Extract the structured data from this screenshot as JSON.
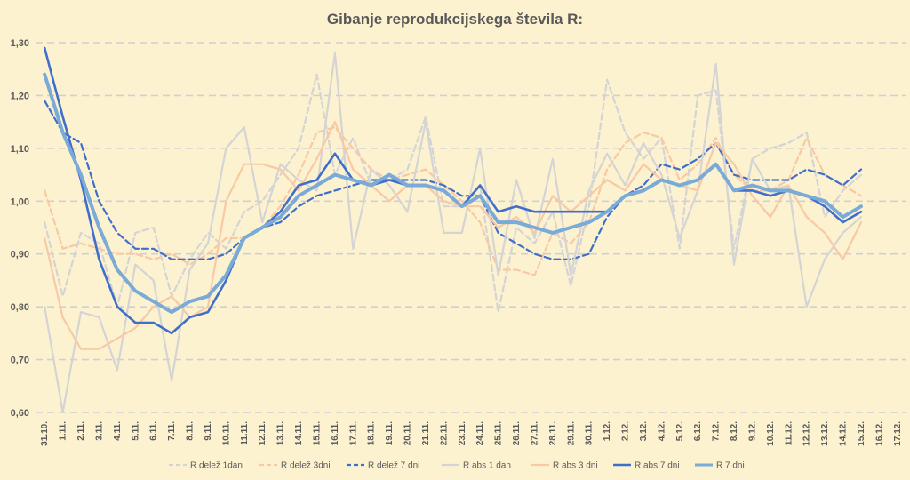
{
  "chart_data": {
    "type": "line",
    "title": "Gibanje reprodukcijskega števila R:",
    "xlabel": "",
    "ylabel": "",
    "ylim": [
      0.6,
      1.3
    ],
    "yticks": [
      "0,60",
      "0,70",
      "0,80",
      "0,90",
      "1,00",
      "1,10",
      "1,20",
      "1,30"
    ],
    "grid": true,
    "legend_position": "bottom",
    "categories": [
      "31.10.",
      "1.11.",
      "2.11.",
      "3.11.",
      "4.11.",
      "5.11.",
      "6.11.",
      "7.11.",
      "8.11.",
      "9.11.",
      "10.11.",
      "11.11.",
      "12.11.",
      "13.11.",
      "14.11.",
      "15.11.",
      "16.11.",
      "17.11.",
      "18.11.",
      "19.11.",
      "20.11.",
      "21.11.",
      "22.11.",
      "23.11.",
      "24.11.",
      "25.11.",
      "26.11.",
      "27.11.",
      "28.11.",
      "29.11.",
      "30.11.",
      "1.12.",
      "2.12.",
      "3.12.",
      "4.12.",
      "5.12.",
      "6.12.",
      "7.12.",
      "8.12.",
      "9.12.",
      "10.12.",
      "11.12.",
      "12.12.",
      "13.12.",
      "14.12.",
      "15.12.",
      "16.12.",
      "17.12."
    ],
    "series": [
      {
        "name": "R delež 1dan",
        "color": "#d4d4d4",
        "style": "dashed",
        "width": 2.2,
        "values": [
          0.96,
          0.82,
          0.94,
          0.92,
          0.8,
          0.94,
          0.95,
          0.82,
          0.89,
          0.94,
          0.91,
          0.98,
          1.0,
          1.05,
          1.1,
          1.24,
          1.05,
          1.12,
          1.03,
          1.04,
          1.06,
          1.16,
          0.99,
          0.99,
          1.03,
          0.79,
          0.95,
          0.92,
          0.98,
          0.84,
          0.99,
          1.23,
          1.13,
          1.08,
          1.12,
          0.91,
          1.2,
          1.21,
          0.91,
          1.08,
          1.1,
          1.11,
          1.13,
          0.97,
          1.02,
          1.05,
          null,
          null
        ]
      },
      {
        "name": "R delež 3dni",
        "color": "#f7c9a4",
        "style": "dashed",
        "width": 2.2,
        "values": [
          1.02,
          0.91,
          0.92,
          0.91,
          0.9,
          0.9,
          0.89,
          0.9,
          0.88,
          0.9,
          0.93,
          0.93,
          0.95,
          0.99,
          1.05,
          1.13,
          1.14,
          1.1,
          1.06,
          1.04,
          1.05,
          1.06,
          1.03,
          1.0,
          0.96,
          0.87,
          0.87,
          0.86,
          0.94,
          0.92,
          0.96,
          1.06,
          1.11,
          1.13,
          1.12,
          1.04,
          1.07,
          1.12,
          1.05,
          1.02,
          1.02,
          1.04,
          1.12,
          1.05,
          1.03,
          1.01,
          null,
          null
        ]
      },
      {
        "name": "R delež 7 dni",
        "color": "#3f6fca",
        "style": "dashed",
        "width": 2.2,
        "values": [
          1.19,
          1.13,
          1.11,
          1.0,
          0.94,
          0.91,
          0.91,
          0.89,
          0.89,
          0.89,
          0.9,
          0.93,
          0.95,
          0.96,
          0.99,
          1.01,
          1.02,
          1.03,
          1.04,
          1.04,
          1.04,
          1.04,
          1.03,
          1.01,
          1.01,
          0.94,
          0.92,
          0.9,
          0.89,
          0.89,
          0.9,
          0.97,
          1.01,
          1.03,
          1.07,
          1.06,
          1.08,
          1.11,
          1.05,
          1.04,
          1.04,
          1.04,
          1.06,
          1.05,
          1.03,
          1.06,
          null,
          null
        ]
      },
      {
        "name": "R abs 1 dan",
        "color": "#d4d4d4",
        "style": "solid",
        "width": 2.2,
        "values": [
          0.8,
          0.59,
          0.79,
          0.78,
          0.68,
          0.88,
          0.85,
          0.66,
          0.87,
          0.92,
          1.1,
          1.14,
          0.96,
          1.07,
          1.04,
          1.02,
          1.28,
          0.91,
          1.06,
          1.03,
          0.98,
          1.15,
          0.94,
          0.94,
          1.1,
          0.86,
          1.04,
          0.93,
          1.08,
          0.86,
          1.02,
          1.09,
          1.03,
          1.11,
          1.05,
          0.93,
          1.02,
          1.26,
          0.88,
          1.08,
          1.02,
          1.03,
          0.8,
          0.89,
          0.94,
          0.97,
          null,
          null
        ]
      },
      {
        "name": "R abs 3 dni",
        "color": "#f7c9a4",
        "style": "solid",
        "width": 2.2,
        "values": [
          0.93,
          0.78,
          0.72,
          0.72,
          0.74,
          0.76,
          0.8,
          0.82,
          0.78,
          0.8,
          1.0,
          1.07,
          1.07,
          1.06,
          1.02,
          1.08,
          1.15,
          1.06,
          1.03,
          1.0,
          1.03,
          1.03,
          1.0,
          0.99,
          0.99,
          0.95,
          0.97,
          0.94,
          1.01,
          0.98,
          1.01,
          1.04,
          1.02,
          1.07,
          1.04,
          1.03,
          1.02,
          1.11,
          1.07,
          1.01,
          0.97,
          1.03,
          0.97,
          0.94,
          0.89,
          0.96,
          null,
          null
        ]
      },
      {
        "name": "R abs 7 dni",
        "color": "#3f6fca",
        "style": "solid",
        "width": 2.6,
        "values": [
          1.29,
          1.16,
          1.04,
          0.89,
          0.8,
          0.77,
          0.77,
          0.75,
          0.78,
          0.79,
          0.85,
          0.93,
          0.95,
          0.98,
          1.03,
          1.04,
          1.09,
          1.04,
          1.03,
          1.04,
          1.03,
          1.03,
          1.02,
          0.99,
          1.03,
          0.98,
          0.99,
          0.98,
          0.98,
          0.98,
          0.98,
          0.98,
          1.01,
          1.02,
          1.04,
          1.03,
          1.04,
          1.07,
          1.02,
          1.02,
          1.01,
          1.02,
          1.01,
          0.99,
          0.96,
          0.98,
          null,
          null
        ]
      },
      {
        "name": "R 7 dni",
        "color": "#7aaad8",
        "style": "solid",
        "width": 4,
        "values": [
          1.24,
          1.13,
          1.05,
          0.95,
          0.87,
          0.83,
          0.81,
          0.79,
          0.81,
          0.82,
          0.86,
          0.93,
          0.95,
          0.97,
          1.01,
          1.03,
          1.05,
          1.04,
          1.03,
          1.05,
          1.03,
          1.03,
          1.02,
          0.99,
          1.01,
          0.96,
          0.96,
          0.95,
          0.94,
          0.95,
          0.96,
          0.98,
          1.01,
          1.02,
          1.04,
          1.03,
          1.04,
          1.07,
          1.02,
          1.03,
          1.02,
          1.02,
          1.01,
          1.0,
          0.97,
          0.99,
          null,
          null
        ]
      }
    ]
  }
}
